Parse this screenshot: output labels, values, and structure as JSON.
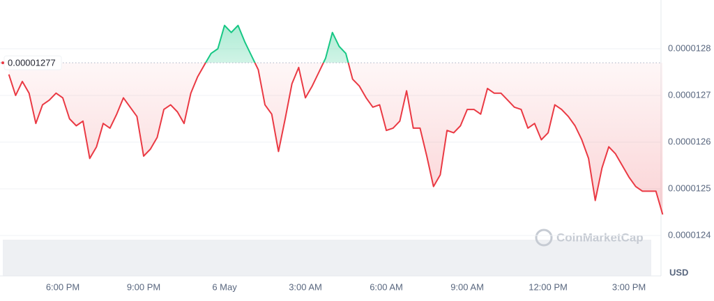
{
  "chart_data": {
    "type": "line",
    "categories": [
      null,
      null,
      null,
      null,
      null,
      null,
      null,
      null,
      "6:00 PM",
      null,
      null,
      null,
      null,
      null,
      null,
      null,
      null,
      null,
      null,
      null,
      "9:00 PM",
      null,
      null,
      null,
      null,
      null,
      null,
      null,
      null,
      null,
      null,
      null,
      "6 May",
      null,
      null,
      null,
      null,
      null,
      null,
      null,
      null,
      null,
      null,
      null,
      "3:00 AM",
      null,
      null,
      null,
      null,
      null,
      null,
      null,
      null,
      null,
      null,
      null,
      "6:00 AM",
      null,
      null,
      null,
      null,
      null,
      null,
      null,
      null,
      null,
      null,
      null,
      "9:00 AM",
      null,
      null,
      null,
      null,
      null,
      null,
      null,
      null,
      null,
      null,
      null,
      "12:00 PM",
      null,
      null,
      null,
      null,
      null,
      null,
      null,
      null,
      null,
      null,
      null,
      "3:00 PM",
      null,
      null,
      null,
      null,
      null
    ],
    "values": [
      1.2745e-05,
      1.27e-05,
      1.273e-05,
      1.2705e-05,
      1.264e-05,
      1.268e-05,
      1.269e-05,
      1.2705e-05,
      1.2695e-05,
      1.265e-05,
      1.2635e-05,
      1.2645e-05,
      1.2565e-05,
      1.259e-05,
      1.264e-05,
      1.263e-05,
      1.266e-05,
      1.2695e-05,
      1.2675e-05,
      1.2655e-05,
      1.257e-05,
      1.2585e-05,
      1.261e-05,
      1.267e-05,
      1.268e-05,
      1.2665e-05,
      1.264e-05,
      1.2705e-05,
      1.274e-05,
      1.2765e-05,
      1.279e-05,
      1.28e-05,
      1.285e-05,
      1.2835e-05,
      1.285e-05,
      1.2815e-05,
      1.2785e-05,
      1.2755e-05,
      1.268e-05,
      1.266e-05,
      1.258e-05,
      1.265e-05,
      1.2725e-05,
      1.276e-05,
      1.2695e-05,
      1.272e-05,
      1.275e-05,
      1.278e-05,
      1.2835e-05,
      1.2805e-05,
      1.279e-05,
      1.2735e-05,
      1.272e-05,
      1.2695e-05,
      1.2675e-05,
      1.268e-05,
      1.2625e-05,
      1.263e-05,
      1.2645e-05,
      1.271e-05,
      1.263e-05,
      1.263e-05,
      1.257e-05,
      1.2505e-05,
      1.253e-05,
      1.2625e-05,
      1.262e-05,
      1.2635e-05,
      1.267e-05,
      1.267e-05,
      1.266e-05,
      1.2715e-05,
      1.2705e-05,
      1.2705e-05,
      1.269e-05,
      1.2675e-05,
      1.267e-05,
      1.263e-05,
      1.264e-05,
      1.2605e-05,
      1.262e-05,
      1.268e-05,
      1.267e-05,
      1.2655e-05,
      1.2635e-05,
      1.2605e-05,
      1.2565e-05,
      1.2475e-05,
      1.2545e-05,
      1.259e-05,
      1.2575e-05,
      1.255e-05,
      1.2525e-05,
      1.2505e-05,
      1.2495e-05,
      1.2495e-05,
      1.2495e-05,
      1.2445e-05
    ],
    "baseline": 1.277e-05,
    "up_color": "#16c784",
    "down_color": "#ea3943",
    "ylim": [
      1.24e-05,
      1.29e-05
    ],
    "yticks": [
      1.28e-05,
      1.27e-05,
      1.26e-05,
      1.25e-05,
      1.24e-05
    ],
    "grid": true,
    "y_axis_label": "USD",
    "watermark": "CoinMarketCap"
  }
}
